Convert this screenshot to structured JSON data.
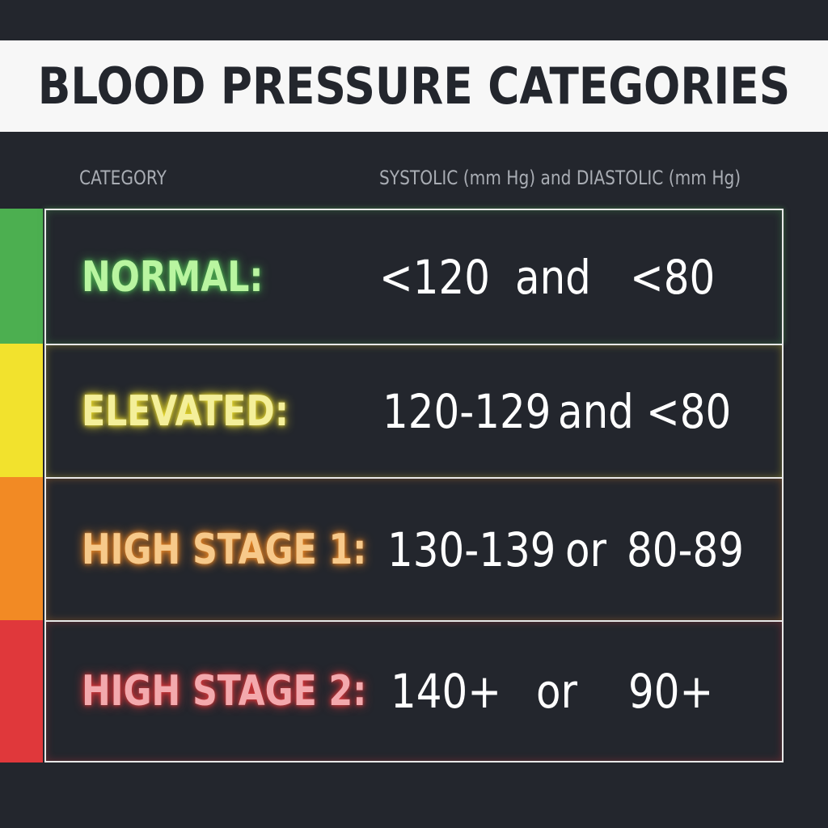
{
  "title": "BLOOD PRESSURE CATEGORIES",
  "columns": {
    "category": "CATEGORY",
    "values": "SYSTOLIC (mm Hg) and DIASTOLIC (mm Hg)"
  },
  "rows": [
    {
      "category": "NORMAL:",
      "systolic": "<120",
      "connector": "and",
      "diastolic": "<80",
      "color": "#4caf50",
      "glow": "#b9f5a0"
    },
    {
      "category": "ELEVATED:",
      "systolic": "120-129",
      "connector": "and",
      "diastolic": "<80",
      "color": "#f2e22d",
      "glow": "#f4ef9a"
    },
    {
      "category": "HIGH STAGE 1:",
      "systolic": "130-139",
      "connector": "or",
      "diastolic": "80-89",
      "color": "#f28a24",
      "glow": "#f7c98a"
    },
    {
      "category": "HIGH STAGE 2:",
      "systolic": "140+",
      "connector": "or",
      "diastolic": "90+",
      "color": "#e0383b",
      "glow": "#f3a9ad"
    }
  ]
}
